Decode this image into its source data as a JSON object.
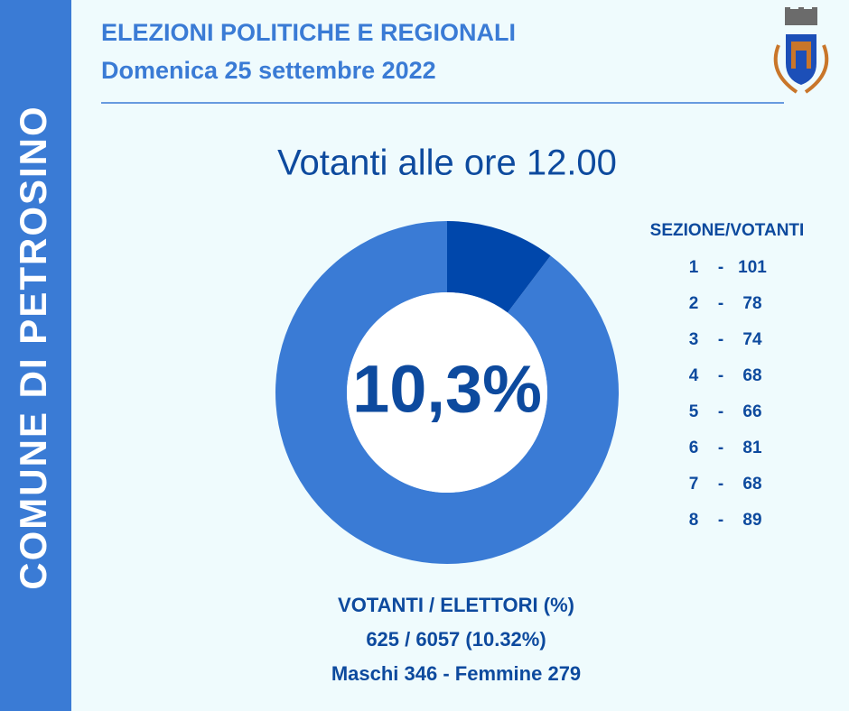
{
  "sidebar": "COMUNE DI PETROSINO",
  "header": {
    "title": "ELEZIONI POLITICHE E REGIONALI",
    "subtitle": "Domenica 25 settembre 2022"
  },
  "heading": "Votanti alle ore 12.00",
  "donut": {
    "value": 10.3,
    "max": 100,
    "center_label": "10,3%",
    "value_color": "#0047ab",
    "rest_color": "#3a7bd5"
  },
  "table": {
    "header": "SEZIONE/VOTANTI",
    "separator": "-",
    "rows": [
      [
        1,
        101
      ],
      [
        2,
        78
      ],
      [
        3,
        74
      ],
      [
        4,
        68
      ],
      [
        5,
        66
      ],
      [
        6,
        81
      ],
      [
        7,
        68
      ],
      [
        8,
        89
      ]
    ]
  },
  "footer": {
    "line1": "VOTANTI / ELETTORI (%)",
    "line2": "625 / 6057 (10.32%)",
    "line3": "Maschi 346 - Femmine 279"
  }
}
